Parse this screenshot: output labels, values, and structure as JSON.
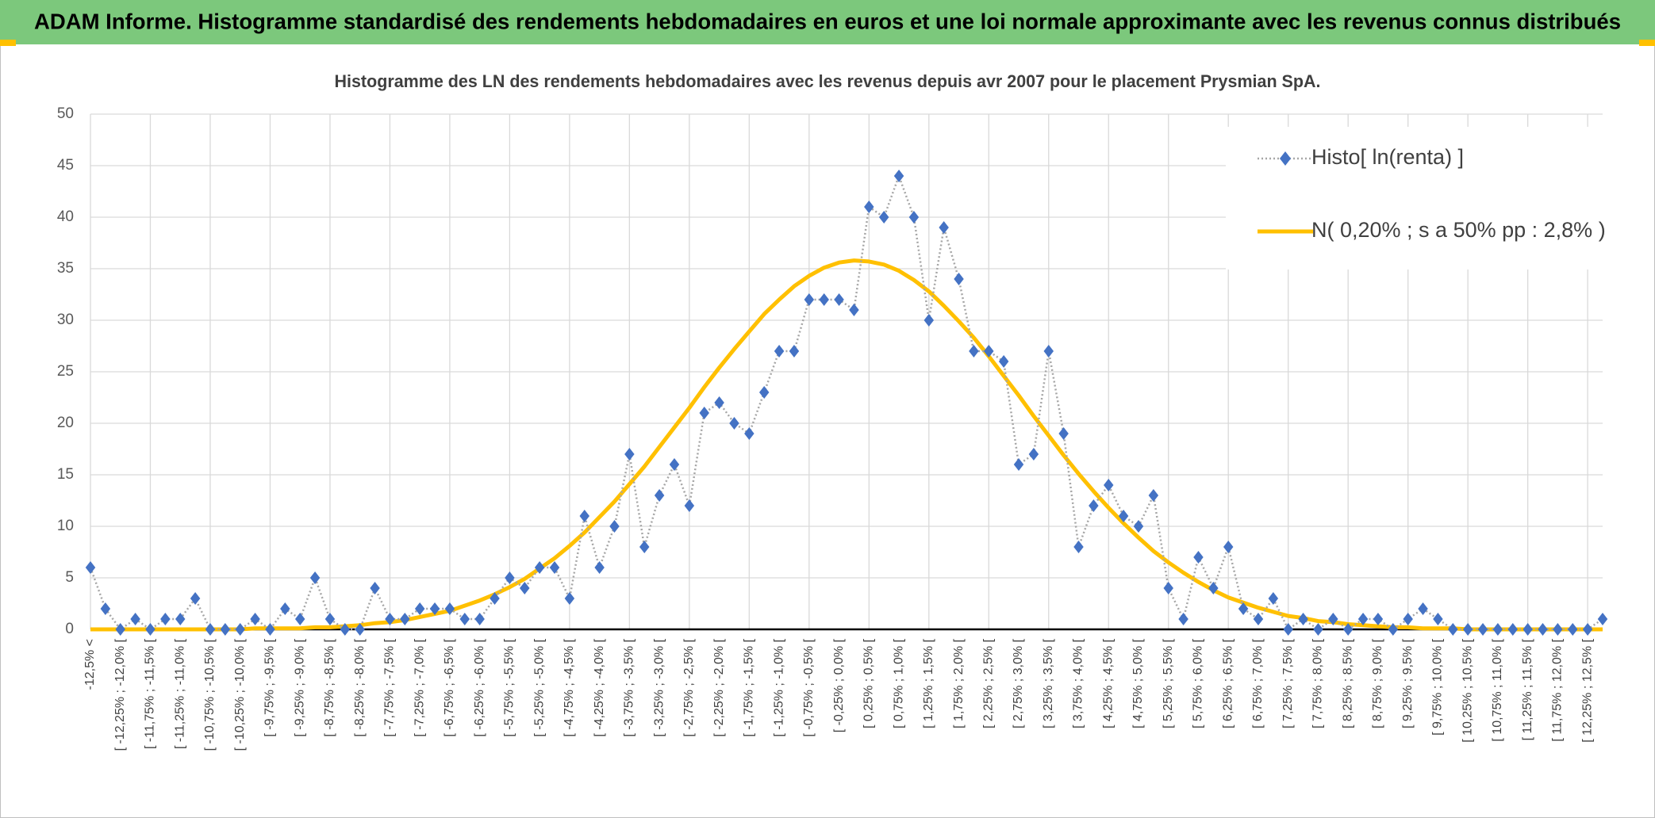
{
  "chart_data": {
    "type": "line",
    "header": "ADAM Informe. Histogramme standardisé des rendements hebdomadaires en euros et une loi normale approximante avec les revenus connus distribués",
    "title": "Histogramme des LN des rendements hebdomadaires avec les revenus depuis avr 2007 pour le placement Prysmian SpA.",
    "categories": [
      "-12,5% <",
      null,
      "[ -12,25% ; -12,0% [",
      null,
      "[ -11,75% ; -11,5% [",
      null,
      "[ -11,25% ; -11,0% [",
      null,
      "[ -10,75% ; -10,5% [",
      null,
      "[ -10,25% ; -10,0% [",
      null,
      "[ -9,75% ; -9,5% [",
      null,
      "[ -9,25% ; -9,0% [",
      null,
      "[ -8,75% ; -8,5% [",
      null,
      "[ -8,25% ; -8,0% [",
      null,
      "[ -7,75% ; -7,5% [",
      null,
      "[ -7,25% ; -7,0% [",
      null,
      "[ -6,75% ; -6,5% [",
      null,
      "[ -6,25% ; -6,0% [",
      null,
      "[ -5,75% ; -5,5% [",
      null,
      "[ -5,25% ; -5,0% [",
      null,
      "[ -4,75% ; -4,5% [",
      null,
      "[ -4,25% ; -4,0% [",
      null,
      "[ -3,75% ; -3,5% [",
      null,
      "[ -3,25% ; -3,0% [",
      null,
      "[ -2,75% ; -2,5% [",
      null,
      "[ -2,25% ; -2,0% [",
      null,
      "[ -1,75% ; -1,5% [",
      null,
      "[ -1,25% ; -1,0% [",
      null,
      "[ -0,75% ; -0,5% [",
      null,
      "[ -0,25% ; 0,0% [",
      null,
      "[ 0,25% ; 0,5% [",
      null,
      "[ 0,75% ; 1,0% [",
      null,
      "[ 1,25% ; 1,5% [",
      null,
      "[ 1,75% ; 2,0% [",
      null,
      "[ 2,25% ; 2,5% [",
      null,
      "[ 2,75% ; 3,0% [",
      null,
      "[ 3,25% ; 3,5% [",
      null,
      "[ 3,75% ; 4,0% [",
      null,
      "[ 4,25% ; 4,5% [",
      null,
      "[ 4,75% ; 5,0% [",
      null,
      "[ 5,25% ; 5,5% [",
      null,
      "[ 5,75% ; 6,0% [",
      null,
      "[ 6,25% ; 6,5% [",
      null,
      "[ 6,75% ; 7,0% [",
      null,
      "[ 7,25% ; 7,5% [",
      null,
      "[ 7,75% ; 8,0% [",
      null,
      "[ 8,25% ; 8,5% [",
      null,
      "[ 8,75% ; 9,0% [",
      null,
      "[ 9,25% ; 9,5% [",
      null,
      "[ 9,75% ; 10,0% [",
      null,
      "[ 10,25% ; 10,5% [",
      null,
      "[ 10,75% ; 11,0% [",
      null,
      "[ 11,25% ; 11,5% [",
      null,
      "[ 11,75% ; 12,0% [",
      null,
      "[ 12,25% ; 12,5% [",
      null
    ],
    "series": [
      {
        "name": "Histo[ ln(renta) ]",
        "color": "#4472c4",
        "line_color": "#a6a6a6",
        "marker": "diamond",
        "values": [
          6,
          2,
          0,
          1,
          0,
          1,
          1,
          3,
          0,
          0,
          0,
          1,
          0,
          2,
          1,
          5,
          1,
          0,
          0,
          4,
          1,
          1,
          2,
          2,
          2,
          1,
          1,
          3,
          5,
          4,
          6,
          6,
          3,
          11,
          6,
          10,
          17,
          8,
          13,
          16,
          12,
          21,
          22,
          20,
          19,
          23,
          27,
          27,
          32,
          32,
          32,
          31,
          41,
          40,
          44,
          40,
          30,
          39,
          34,
          27,
          27,
          26,
          16,
          17,
          27,
          19,
          8,
          12,
          14,
          11,
          10,
          13,
          4,
          1,
          7,
          4,
          8,
          2,
          1,
          3,
          0,
          1,
          0,
          1,
          0,
          1,
          1,
          0,
          1,
          2,
          1,
          0,
          0,
          0,
          0,
          0,
          0,
          0,
          0,
          0,
          0,
          1
        ]
      },
      {
        "name": "N( 0,20% ; s a 50% pp : 2,8% )",
        "color": "#ffc000",
        "values": [
          0,
          0,
          0,
          0,
          0,
          0,
          0,
          0,
          0,
          0,
          0,
          0.1,
          0.1,
          0.1,
          0.1,
          0.2,
          0.2,
          0.3,
          0.4,
          0.6,
          0.7,
          0.9,
          1.2,
          1.5,
          1.8,
          2.3,
          2.8,
          3.4,
          4.1,
          4.9,
          5.9,
          6.9,
          8.1,
          9.4,
          10.9,
          12.4,
          14.1,
          15.8,
          17.7,
          19.6,
          21.5,
          23.5,
          25.4,
          27.2,
          28.9,
          30.6,
          32.0,
          33.3,
          34.3,
          35.1,
          35.6,
          35.8,
          35.7,
          35.4,
          34.8,
          33.9,
          32.8,
          31.4,
          29.9,
          28.3,
          26.5,
          24.6,
          22.7,
          20.7,
          18.8,
          16.9,
          15.1,
          13.4,
          11.8,
          10.3,
          8.9,
          7.6,
          6.5,
          5.5,
          4.6,
          3.8,
          3.1,
          2.6,
          2.1,
          1.7,
          1.3,
          1.1,
          0.8,
          0.7,
          0.5,
          0.4,
          0.3,
          0.2,
          0.2,
          0.1,
          0.1,
          0.1,
          0,
          0,
          0,
          0,
          0,
          0,
          0,
          0,
          0,
          0
        ]
      }
    ],
    "ylim": [
      0,
      50
    ],
    "yticks": [
      0,
      5,
      10,
      15,
      20,
      25,
      30,
      35,
      40,
      45,
      50
    ],
    "grid": true,
    "legend": "upper right"
  }
}
